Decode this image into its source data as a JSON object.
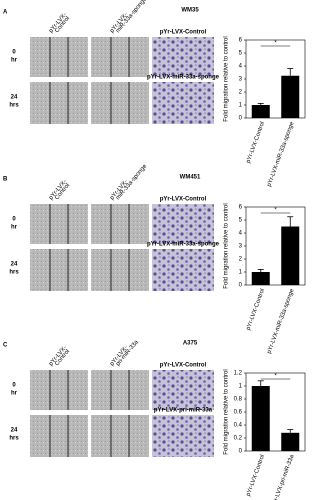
{
  "panels": [
    {
      "letter": "A",
      "title": "WM35",
      "scratch_headers": [
        [
          "pYr-LVX-",
          "Control"
        ],
        [
          "pYr-LVX-",
          "miR-33a-sponge"
        ]
      ],
      "row_labels": [
        [
          "0",
          "hr"
        ],
        [
          "24",
          "hrs"
        ]
      ],
      "micro_labels": [
        "pYr-LVX-Control",
        "pYr-LVX-miR-33a-sponge"
      ]
    },
    {
      "letter": "B",
      "title": "WM451",
      "scratch_headers": [
        [
          "pYr-LVX-",
          "Control"
        ],
        [
          "pYr-LVX-",
          "miR-33a-sponge"
        ]
      ],
      "row_labels": [
        [
          "0",
          "hr"
        ],
        [
          "24",
          "hrs"
        ]
      ],
      "micro_labels": [
        "pYr-LVX-Control",
        "pYr-LVX-miR-33a-sponge"
      ]
    },
    {
      "letter": "C",
      "title": "A375",
      "scratch_headers": [
        [
          "pYr-LVX-",
          "Control"
        ],
        [
          "pYr-LVX-",
          "pri-miR-33a"
        ]
      ],
      "row_labels": [
        [
          "0",
          "hr"
        ],
        [
          "24",
          "hrs"
        ]
      ],
      "micro_labels": [
        "pYr-LVX-Control",
        "pYr-LVX-pri-miR-33a"
      ]
    }
  ],
  "chart_data": [
    {
      "type": "bar",
      "y_label": "Fold migration relative to control",
      "categories": [
        "pYr-LVX-Control",
        "pYr-LVX-miR-33a-sponge"
      ],
      "values": [
        1,
        3.25
      ],
      "errors": [
        0.12,
        0.55
      ],
      "color": "#000000",
      "ylim": [
        0,
        6
      ],
      "yticks": [
        0,
        1,
        2,
        3,
        4,
        5,
        6
      ],
      "annotation": "*"
    },
    {
      "type": "bar",
      "y_label": "Fold migration relative to control",
      "categories": [
        "pYr-LVX-Control",
        "pYr-LVX-miR-33a-sponge"
      ],
      "values": [
        1,
        4.5
      ],
      "errors": [
        0.2,
        0.75
      ],
      "color": "#000000",
      "ylim": [
        0,
        6
      ],
      "yticks": [
        0,
        1,
        2,
        3,
        4,
        5,
        6
      ],
      "annotation": "*"
    },
    {
      "type": "bar",
      "y_label": "Fold migration relative to control",
      "categories": [
        "pYr-LVX-Control",
        "pYr-LVX-pri-miR-33a"
      ],
      "values": [
        1,
        0.28
      ],
      "errors": [
        0.08,
        0.05
      ],
      "color": "#000000",
      "ylim": [
        0,
        1.2
      ],
      "yticks": [
        0,
        0.2,
        0.4,
        0.6,
        0.8,
        1,
        1.2
      ],
      "annotation": "*"
    }
  ]
}
